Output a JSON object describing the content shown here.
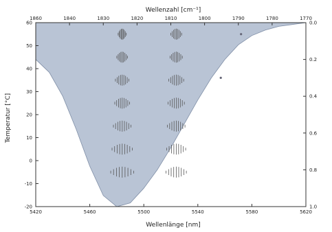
{
  "chart_data": {
    "type": "area",
    "title": "",
    "xlabel": "Wellenlänge [nm]",
    "x2label": "Wellenzahl [cm⁻¹]",
    "ylabel": "Temperatur [°C]",
    "y2label": "",
    "xlim": [
      5420,
      5620
    ],
    "x2lim": [
      1860,
      1770
    ],
    "ylim": [
      -20,
      60
    ],
    "y2lim": [
      1.0,
      0.0
    ],
    "x_ticks": [
      "5420",
      "5460",
      "5500",
      "5540",
      "5580",
      "5620"
    ],
    "x2_ticks": [
      "1860",
      "1840",
      "1830",
      "1820",
      "1810",
      "1800",
      "1790",
      "1780",
      "1770"
    ],
    "y_ticks": [
      "-20",
      "-10",
      "0",
      "10",
      "20",
      "30",
      "40",
      "50",
      "60"
    ],
    "y2_ticks": [
      "1.0",
      "0.8",
      "0.6",
      "0.4",
      "0.2",
      "0.0"
    ],
    "grid": false,
    "series": [
      {
        "role": "filled-transmission-curve",
        "color": "#b9c4d5",
        "x": [
          5420,
          5430,
          5440,
          5450,
          5460,
          5470,
          5480,
          5490,
          5500,
          5510,
          5520,
          5530,
          5540,
          5550,
          5560,
          5570,
          5580,
          5590,
          5600,
          5610,
          5620
        ],
        "y": [
          0.2,
          0.27,
          0.4,
          0.58,
          0.78,
          0.94,
          1.0,
          0.98,
          0.9,
          0.8,
          0.68,
          0.55,
          0.42,
          0.3,
          0.2,
          0.12,
          0.07,
          0.04,
          0.02,
          0.01,
          0.0
        ]
      }
    ],
    "line_groups": [
      {
        "role": "line-group-1",
        "x_center": 5484,
        "temperatures": [
          55,
          45,
          35,
          25,
          15,
          5,
          -5
        ],
        "widths_nm": [
          6,
          8,
          10,
          11,
          13,
          15,
          17
        ]
      },
      {
        "role": "line-group-2",
        "x_center": 5524,
        "temperatures": [
          55,
          45,
          35,
          25,
          15,
          5,
          -5
        ],
        "widths_nm": [
          8,
          9,
          11,
          12,
          13,
          14,
          15
        ]
      },
      {
        "role": "markers",
        "points": [
          {
            "x": 5572,
            "y": 55
          },
          {
            "x": 5557,
            "y": 36
          }
        ]
      }
    ],
    "legend": "none"
  }
}
